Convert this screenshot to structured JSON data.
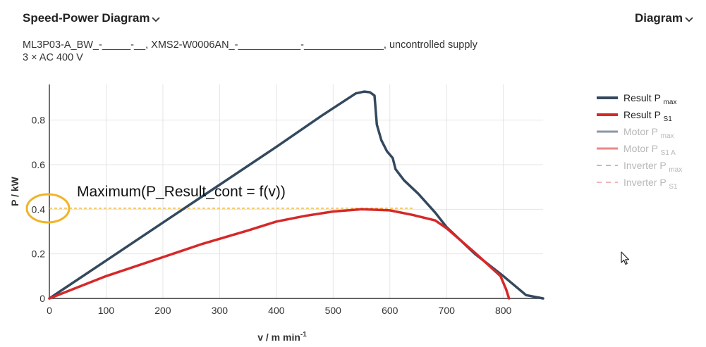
{
  "header": {
    "title": "Speed-Power Diagram",
    "view_menu": "Diagram"
  },
  "subtitle": {
    "line1": "ML3P03-A_BW_-_____-__, XMS2-W0006AN_-___________-______________, uncontrolled supply",
    "line2": "3 × AC 400 V"
  },
  "icons": {
    "title_dropdown": "chevron-down-icon",
    "view_dropdown": "chevron-down-icon",
    "mouse_cursor": "pointer-cursor-icon"
  },
  "chart_data": {
    "type": "line",
    "xlabel": "v / m min",
    "xlabel_sup": "-1",
    "ylabel": "P / kW",
    "xlim": [
      0,
      870
    ],
    "ylim": [
      0,
      0.96
    ],
    "x_ticks": [
      0,
      100,
      200,
      300,
      400,
      500,
      600,
      700,
      800
    ],
    "y_ticks": [
      0,
      0.2,
      0.4,
      0.6,
      0.8
    ],
    "y_tick_labels": [
      "0",
      "0.2",
      "0.4",
      "0.6",
      "0.8"
    ],
    "grid": true,
    "legend_position": "right",
    "series": [
      {
        "name": "Result P",
        "sub": "max",
        "color": "#34495e",
        "dash": false,
        "faded": false,
        "points": [
          [
            0,
            0
          ],
          [
            100,
            0.17
          ],
          [
            200,
            0.34
          ],
          [
            300,
            0.51
          ],
          [
            400,
            0.68
          ],
          [
            480,
            0.82
          ],
          [
            540,
            0.92
          ],
          [
            555,
            0.928
          ],
          [
            565,
            0.925
          ],
          [
            573,
            0.91
          ],
          [
            577,
            0.78
          ],
          [
            585,
            0.71
          ],
          [
            595,
            0.66
          ],
          [
            605,
            0.63
          ],
          [
            610,
            0.58
          ],
          [
            625,
            0.53
          ],
          [
            650,
            0.47
          ],
          [
            680,
            0.385
          ],
          [
            700,
            0.32
          ],
          [
            750,
            0.2
          ],
          [
            800,
            0.1
          ],
          [
            840,
            0.015
          ],
          [
            870,
            0
          ]
        ]
      },
      {
        "name": "Result P",
        "sub": "S1",
        "color": "#d62828",
        "dash": false,
        "faded": false,
        "points": [
          [
            0,
            0
          ],
          [
            100,
            0.1
          ],
          [
            200,
            0.185
          ],
          [
            270,
            0.245
          ],
          [
            350,
            0.305
          ],
          [
            400,
            0.345
          ],
          [
            450,
            0.37
          ],
          [
            500,
            0.39
          ],
          [
            550,
            0.4
          ],
          [
            600,
            0.395
          ],
          [
            640,
            0.375
          ],
          [
            680,
            0.35
          ],
          [
            700,
            0.315
          ],
          [
            750,
            0.205
          ],
          [
            795,
            0.1
          ],
          [
            805,
            0.04
          ],
          [
            810,
            0
          ]
        ]
      }
    ],
    "legend": [
      {
        "label": "Result P",
        "sub": "max",
        "color": "#34495e",
        "dash": false,
        "faded": false
      },
      {
        "label": "Result P",
        "sub": "S1",
        "color": "#d62828",
        "dash": false,
        "faded": false
      },
      {
        "label": "Motor P",
        "sub": "max",
        "color": "#8a97a6",
        "dash": false,
        "faded": true
      },
      {
        "label": "Motor P",
        "sub": "S1 A",
        "color": "#e8888a",
        "dash": false,
        "faded": true
      },
      {
        "label": "Inverter P",
        "sub": "max",
        "color": "#8a97a6",
        "dash": true,
        "faded": true
      },
      {
        "label": "Inverter P",
        "sub": "S1",
        "color": "#e8888a",
        "dash": true,
        "faded": true
      }
    ],
    "annotation": {
      "text": "Maximum(P_Result_cont = f(v))",
      "value_y": 0.405,
      "x_end": 640,
      "color": "#f0b429"
    }
  }
}
